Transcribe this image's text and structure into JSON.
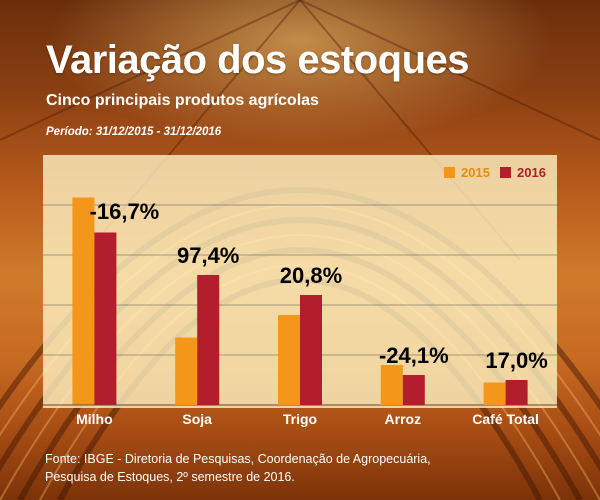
{
  "header": {
    "title": "Variação dos estoques",
    "subtitle": "Cinco principais produtos agrícolas",
    "period": "Período: 31/12/2015 - 31/12/2016"
  },
  "legend": {
    "series_2015": "2015",
    "series_2016": "2016"
  },
  "colors": {
    "series_2015": "#f3961a",
    "series_2016": "#b21e2b",
    "panel": "#fff6c8",
    "gridline": "#555555"
  },
  "source": {
    "line1": "Fonte: IBGE - Diretoria de Pesquisas, Coordenação de Agropecuária,",
    "line2": "Pesquisa de Estoques, 2º semestre de 2016."
  },
  "chart_data": {
    "type": "bar",
    "title": "Variação dos estoques",
    "subtitle": "Cinco principais produtos agrícolas",
    "xlabel": "",
    "ylabel": "",
    "grid": true,
    "legend_position": "top-right",
    "ylim": [
      0,
      100
    ],
    "categories": [
      "Milho",
      "Soja",
      "Trigo",
      "Arroz",
      "Café Total"
    ],
    "series": [
      {
        "name": "2015",
        "values": [
          83,
          27,
          36,
          16,
          9
        ]
      },
      {
        "name": "2016",
        "values": [
          69,
          52,
          44,
          12,
          10
        ]
      }
    ],
    "annotations": [
      "-16,7%",
      "97,4%",
      "20,8%",
      "-24,1%",
      "17,0%"
    ]
  }
}
